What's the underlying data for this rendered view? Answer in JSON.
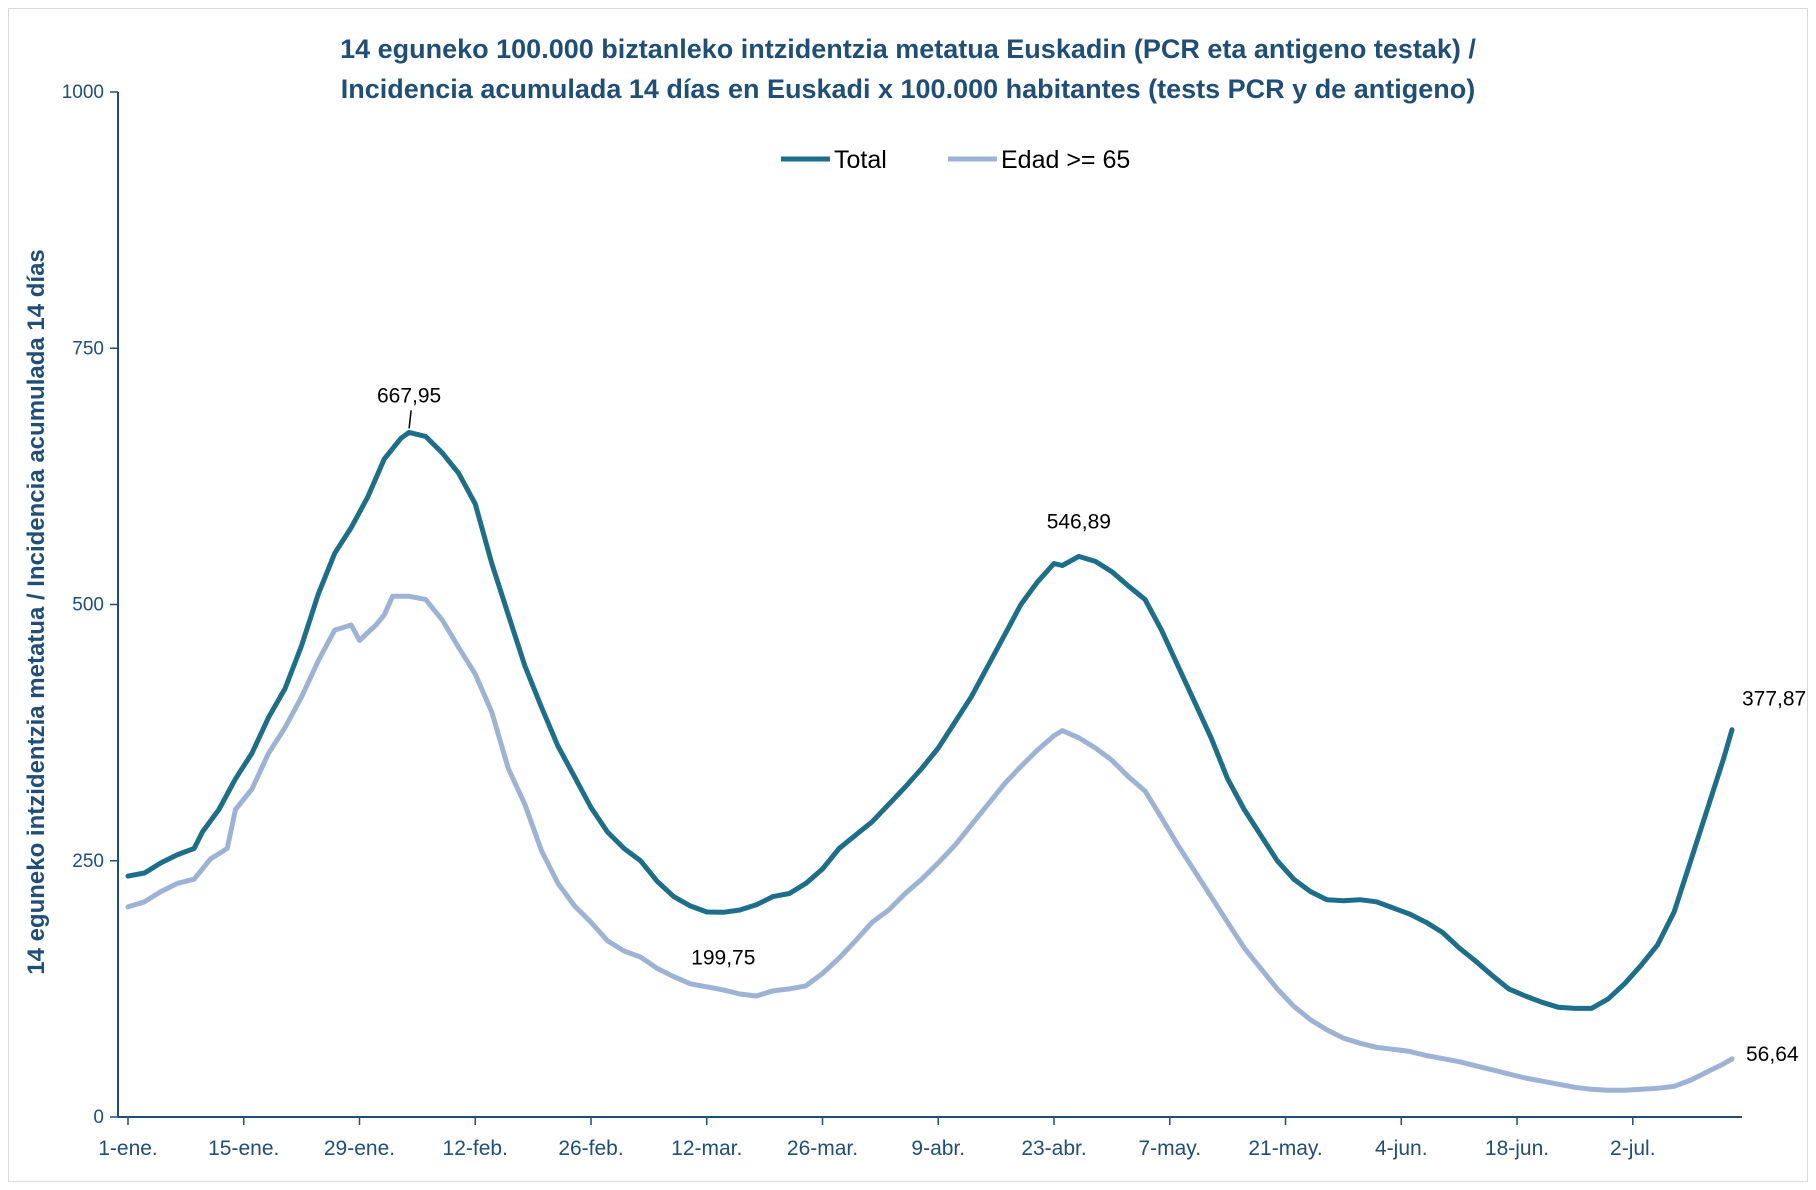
{
  "chart_data": {
    "type": "line",
    "title": [
      "14 eguneko 100.000 biztanleko intzidentzia metatua Euskadin (PCR eta antigeno testak) /",
      "Incidencia acumulada 14 días en Euskadi x 100.000 habitantes (tests PCR y de antigeno)"
    ],
    "ylabel": "14 eguneko intzidentzia metatua / Incidencia acumulada 14 días",
    "xlabel": "",
    "ylim": [
      0,
      1000
    ],
    "yticks": [
      0,
      250,
      500,
      750,
      1000
    ],
    "xlim": [
      0,
      194
    ],
    "xticks": [
      {
        "label": "1-ene.",
        "day": 0
      },
      {
        "label": "15-ene.",
        "day": 14
      },
      {
        "label": "29-ene.",
        "day": 28
      },
      {
        "label": "12-feb.",
        "day": 42
      },
      {
        "label": "26-feb.",
        "day": 56
      },
      {
        "label": "12-mar.",
        "day": 70
      },
      {
        "label": "26-mar.",
        "day": 84
      },
      {
        "label": "9-abr.",
        "day": 98
      },
      {
        "label": "23-abr.",
        "day": 112
      },
      {
        "label": "7-may.",
        "day": 126
      },
      {
        "label": "21-may.",
        "day": 140
      },
      {
        "label": "4-jun.",
        "day": 154
      },
      {
        "label": "18-jun.",
        "day": 168
      },
      {
        "label": "2-jul.",
        "day": 182
      }
    ],
    "legend_position": "top-center",
    "grid": false,
    "series": [
      {
        "name": "Total",
        "color": "#1b6f8a",
        "points": [
          [
            0,
            235
          ],
          [
            2,
            238
          ],
          [
            4,
            248
          ],
          [
            6,
            256
          ],
          [
            8,
            262
          ],
          [
            9,
            278
          ],
          [
            11,
            300
          ],
          [
            13,
            330
          ],
          [
            15,
            355
          ],
          [
            17,
            390
          ],
          [
            19,
            418
          ],
          [
            21,
            460
          ],
          [
            23,
            510
          ],
          [
            25,
            550
          ],
          [
            27,
            575
          ],
          [
            29,
            605
          ],
          [
            31,
            642
          ],
          [
            33,
            662
          ],
          [
            34,
            667.95
          ],
          [
            36,
            664
          ],
          [
            38,
            648
          ],
          [
            40,
            628
          ],
          [
            42,
            598
          ],
          [
            44,
            540
          ],
          [
            46,
            490
          ],
          [
            48,
            440
          ],
          [
            50,
            400
          ],
          [
            52,
            362
          ],
          [
            54,
            332
          ],
          [
            56,
            302
          ],
          [
            58,
            278
          ],
          [
            60,
            262
          ],
          [
            62,
            250
          ],
          [
            64,
            230
          ],
          [
            66,
            215
          ],
          [
            68,
            206
          ],
          [
            70,
            200
          ],
          [
            72,
            199.75
          ],
          [
            74,
            202
          ],
          [
            76,
            207
          ],
          [
            78,
            215
          ],
          [
            80,
            218
          ],
          [
            82,
            228
          ],
          [
            84,
            242
          ],
          [
            86,
            262
          ],
          [
            88,
            275
          ],
          [
            90,
            288
          ],
          [
            92,
            305
          ],
          [
            94,
            322
          ],
          [
            96,
            340
          ],
          [
            98,
            360
          ],
          [
            100,
            385
          ],
          [
            102,
            410
          ],
          [
            104,
            440
          ],
          [
            106,
            470
          ],
          [
            108,
            500
          ],
          [
            110,
            522
          ],
          [
            112,
            540
          ],
          [
            113,
            538
          ],
          [
            115,
            546.89
          ],
          [
            117,
            542
          ],
          [
            119,
            532
          ],
          [
            121,
            518
          ],
          [
            123,
            505
          ],
          [
            125,
            475
          ],
          [
            127,
            440
          ],
          [
            129,
            405
          ],
          [
            131,
            370
          ],
          [
            133,
            330
          ],
          [
            135,
            300
          ],
          [
            137,
            275
          ],
          [
            139,
            250
          ],
          [
            141,
            232
          ],
          [
            143,
            220
          ],
          [
            145,
            212
          ],
          [
            147,
            211
          ],
          [
            149,
            212
          ],
          [
            151,
            210
          ],
          [
            153,
            204
          ],
          [
            155,
            198
          ],
          [
            157,
            190
          ],
          [
            159,
            180
          ],
          [
            161,
            165
          ],
          [
            163,
            152
          ],
          [
            165,
            138
          ],
          [
            167,
            125
          ],
          [
            169,
            118
          ],
          [
            171,
            112
          ],
          [
            173,
            107
          ],
          [
            175,
            106
          ],
          [
            177,
            106
          ],
          [
            179,
            115
          ],
          [
            181,
            130
          ],
          [
            183,
            148
          ],
          [
            185,
            168
          ],
          [
            187,
            200
          ],
          [
            189,
            250
          ],
          [
            191,
            300
          ],
          [
            193,
            350
          ],
          [
            194,
            377.87
          ]
        ],
        "labels": [
          {
            "day": 34,
            "value": 667.95,
            "text": "667,95"
          },
          {
            "day": 72,
            "value": 199.75,
            "text": "199,75"
          },
          {
            "day": 115,
            "value": 546.89,
            "text": "546,89"
          },
          {
            "day": 194,
            "value": 377.87,
            "text": "377,87"
          }
        ]
      },
      {
        "name": "Edad >= 65",
        "color": "#9db3d6",
        "points": [
          [
            0,
            205
          ],
          [
            2,
            210
          ],
          [
            4,
            220
          ],
          [
            6,
            228
          ],
          [
            8,
            232
          ],
          [
            10,
            252
          ],
          [
            12,
            262
          ],
          [
            13,
            300
          ],
          [
            15,
            320
          ],
          [
            17,
            355
          ],
          [
            19,
            380
          ],
          [
            21,
            410
          ],
          [
            23,
            445
          ],
          [
            25,
            475
          ],
          [
            27,
            480
          ],
          [
            28,
            465
          ],
          [
            30,
            480
          ],
          [
            31,
            490
          ],
          [
            32,
            508
          ],
          [
            34,
            508
          ],
          [
            36,
            505
          ],
          [
            38,
            485
          ],
          [
            40,
            458
          ],
          [
            42,
            432
          ],
          [
            44,
            395
          ],
          [
            46,
            340
          ],
          [
            48,
            305
          ],
          [
            50,
            260
          ],
          [
            52,
            228
          ],
          [
            54,
            206
          ],
          [
            56,
            190
          ],
          [
            58,
            172
          ],
          [
            60,
            162
          ],
          [
            62,
            156
          ],
          [
            64,
            145
          ],
          [
            66,
            137
          ],
          [
            68,
            130
          ],
          [
            70,
            127
          ],
          [
            72,
            124
          ],
          [
            74,
            120
          ],
          [
            76,
            118
          ],
          [
            78,
            123
          ],
          [
            80,
            125
          ],
          [
            82,
            128
          ],
          [
            84,
            140
          ],
          [
            86,
            155
          ],
          [
            88,
            172
          ],
          [
            90,
            190
          ],
          [
            92,
            202
          ],
          [
            94,
            218
          ],
          [
            96,
            232
          ],
          [
            98,
            248
          ],
          [
            100,
            265
          ],
          [
            102,
            285
          ],
          [
            104,
            305
          ],
          [
            106,
            325
          ],
          [
            108,
            342
          ],
          [
            110,
            358
          ],
          [
            112,
            372
          ],
          [
            113,
            377
          ],
          [
            115,
            370
          ],
          [
            117,
            360
          ],
          [
            119,
            348
          ],
          [
            121,
            332
          ],
          [
            123,
            318
          ],
          [
            125,
            292
          ],
          [
            127,
            265
          ],
          [
            129,
            240
          ],
          [
            131,
            215
          ],
          [
            133,
            190
          ],
          [
            135,
            165
          ],
          [
            137,
            145
          ],
          [
            139,
            125
          ],
          [
            141,
            108
          ],
          [
            143,
            95
          ],
          [
            145,
            85
          ],
          [
            147,
            77
          ],
          [
            149,
            72
          ],
          [
            151,
            68
          ],
          [
            153,
            66
          ],
          [
            155,
            64
          ],
          [
            157,
            60
          ],
          [
            159,
            57
          ],
          [
            161,
            54
          ],
          [
            163,
            50
          ],
          [
            165,
            46
          ],
          [
            167,
            42
          ],
          [
            169,
            38
          ],
          [
            171,
            35
          ],
          [
            173,
            32
          ],
          [
            175,
            29
          ],
          [
            177,
            27
          ],
          [
            179,
            26
          ],
          [
            181,
            26
          ],
          [
            183,
            27
          ],
          [
            185,
            28
          ],
          [
            187,
            30
          ],
          [
            189,
            36
          ],
          [
            191,
            44
          ],
          [
            193,
            52
          ],
          [
            194,
            56.64
          ]
        ],
        "labels": [
          {
            "day": 194,
            "value": 56.64,
            "text": "56,64"
          }
        ]
      }
    ]
  }
}
